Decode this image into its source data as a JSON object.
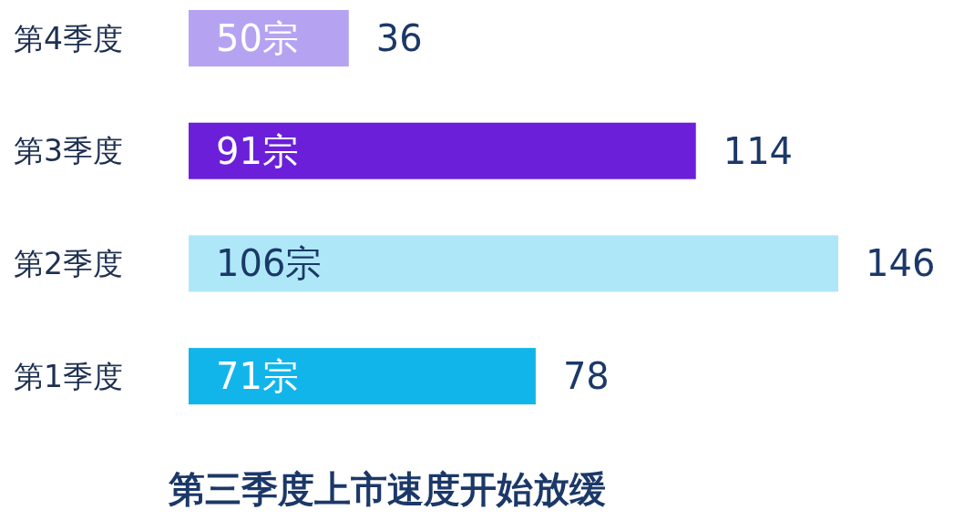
{
  "chart_data": {
    "type": "bar",
    "orientation": "horizontal",
    "title": "第三季度上市速度开始放缓",
    "categories": [
      "第4季度",
      "第3季度",
      "第2季度",
      "第1季度"
    ],
    "values": [
      36,
      114,
      146,
      78
    ],
    "colors": [
      "#b5a3f2",
      "#6b1fd9",
      "#aee8f8",
      "#12b5ea"
    ],
    "data_labels": true,
    "annotations": [
      "50宗",
      "91宗",
      "106宗",
      "71宗"
    ]
  }
}
